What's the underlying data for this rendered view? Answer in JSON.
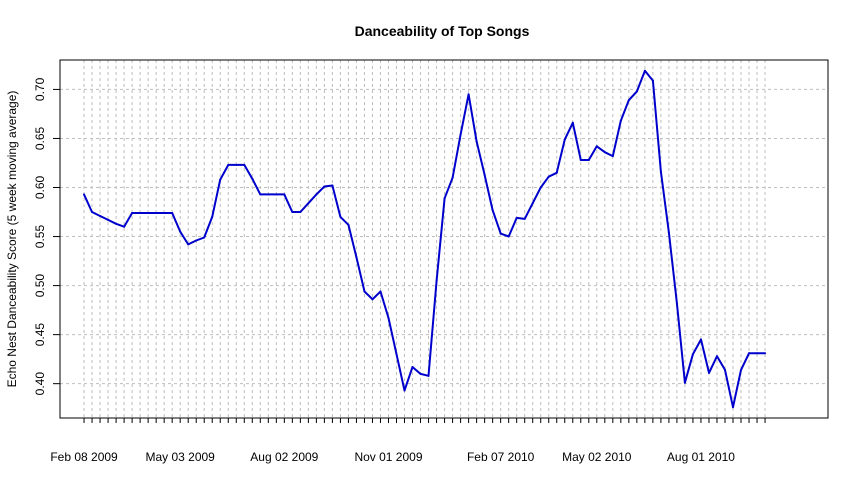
{
  "chart_data": {
    "type": "line",
    "title": "Danceability of Top Songs",
    "xlabel": "",
    "ylabel": "Echo Nest Danceability Score (5 week moving average)",
    "ylim": [
      0.365,
      0.73
    ],
    "xlim": [
      "2009-01-18",
      "2010-11-20"
    ],
    "grid": true,
    "y_ticks": [
      "0.40",
      "0.45",
      "0.50",
      "0.55",
      "0.60",
      "0.65",
      "0.70"
    ],
    "x_tick_labels": [
      {
        "date": "2009-02-08",
        "label": "Feb 08 2009"
      },
      {
        "date": "2009-05-03",
        "label": "May 03 2009"
      },
      {
        "date": "2009-08-02",
        "label": "Aug 02 2009"
      },
      {
        "date": "2009-11-01",
        "label": "Nov 01 2009"
      },
      {
        "date": "2010-02-07",
        "label": "Feb 07 2010"
      },
      {
        "date": "2010-05-02",
        "label": "May 02 2010"
      },
      {
        "date": "2010-08-01",
        "label": "Aug 01 2010"
      }
    ],
    "series": [
      {
        "color": "#0000cd",
        "x": [
          "2009-02-08",
          "2009-02-15",
          "2009-02-22",
          "2009-03-01",
          "2009-03-08",
          "2009-03-15",
          "2009-03-22",
          "2009-03-29",
          "2009-04-05",
          "2009-04-12",
          "2009-04-19",
          "2009-04-26",
          "2009-05-03",
          "2009-05-10",
          "2009-05-17",
          "2009-05-24",
          "2009-05-31",
          "2009-06-07",
          "2009-06-14",
          "2009-06-21",
          "2009-06-28",
          "2009-07-05",
          "2009-07-12",
          "2009-07-19",
          "2009-07-26",
          "2009-08-02",
          "2009-08-09",
          "2009-08-16",
          "2009-08-23",
          "2009-08-30",
          "2009-09-06",
          "2009-09-13",
          "2009-09-20",
          "2009-09-27",
          "2009-10-04",
          "2009-10-11",
          "2009-10-18",
          "2009-10-25",
          "2009-11-01",
          "2009-11-08",
          "2009-11-15",
          "2009-11-22",
          "2009-11-29",
          "2009-12-06",
          "2009-12-13",
          "2009-12-20",
          "2009-12-27",
          "2010-01-03",
          "2010-01-10",
          "2010-01-17",
          "2010-01-24",
          "2010-01-31",
          "2010-02-07",
          "2010-02-14",
          "2010-02-21",
          "2010-02-28",
          "2010-03-07",
          "2010-03-14",
          "2010-03-21",
          "2010-03-28",
          "2010-04-04",
          "2010-04-11",
          "2010-04-18",
          "2010-04-25",
          "2010-05-02",
          "2010-05-09",
          "2010-05-16",
          "2010-05-23",
          "2010-05-30",
          "2010-06-06",
          "2010-06-13",
          "2010-06-20",
          "2010-06-27",
          "2010-07-04",
          "2010-07-11",
          "2010-07-18",
          "2010-07-25",
          "2010-08-01",
          "2010-08-08",
          "2010-08-15",
          "2010-08-22",
          "2010-08-29",
          "2010-09-05",
          "2010-09-12",
          "2010-09-19",
          "2010-09-26"
        ],
        "y": [
          0.593,
          0.575,
          0.571,
          0.567,
          0.563,
          0.56,
          0.574,
          0.574,
          0.574,
          0.574,
          0.574,
          0.574,
          0.555,
          0.542,
          0.546,
          0.549,
          0.57,
          0.608,
          0.623,
          0.623,
          0.623,
          0.609,
          0.593,
          0.593,
          0.593,
          0.593,
          0.575,
          0.575,
          0.584,
          0.593,
          0.601,
          0.602,
          0.57,
          0.562,
          0.529,
          0.494,
          0.486,
          0.494,
          0.467,
          0.43,
          0.393,
          0.417,
          0.41,
          0.408,
          0.505,
          0.589,
          0.61,
          0.654,
          0.695,
          0.647,
          0.613,
          0.577,
          0.553,
          0.55,
          0.569,
          0.568,
          0.584,
          0.6,
          0.611,
          0.615,
          0.649,
          0.666,
          0.628,
          0.628,
          0.642,
          0.636,
          0.632,
          0.668,
          0.689,
          0.698,
          0.719,
          0.709,
          0.616,
          0.554,
          0.482,
          0.401,
          0.43,
          0.445,
          0.411,
          0.428,
          0.414,
          0.376,
          0.414,
          0.431,
          0.431,
          0.431
        ]
      }
    ]
  }
}
